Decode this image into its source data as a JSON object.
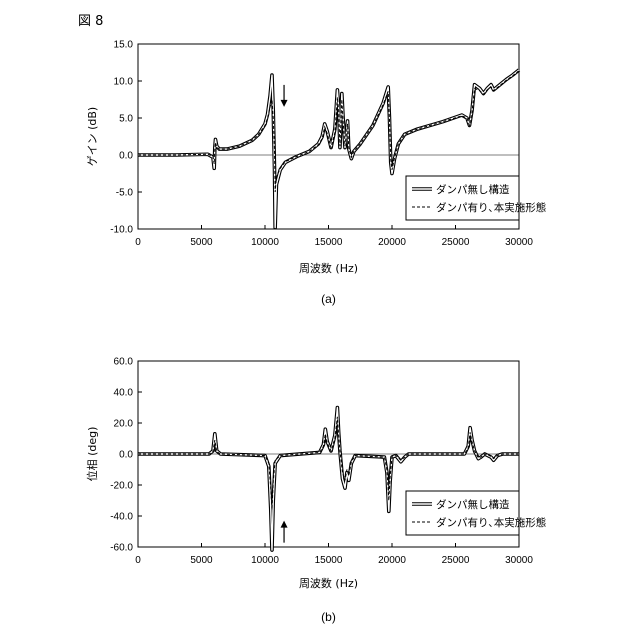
{
  "figure_label": "図 8",
  "chart_data": [
    {
      "type": "line",
      "caption": "(a)",
      "xlabel": "周波数 (Hz)",
      "ylabel": "ゲイン (dB)",
      "xlim": [
        0,
        30000
      ],
      "ylim": [
        -10,
        15
      ],
      "xticks": [
        0,
        5000,
        10000,
        15000,
        20000,
        25000,
        30000
      ],
      "xtick_labels": [
        "0",
        "5000",
        "10000",
        "15000",
        "20000",
        "25000",
        "30000"
      ],
      "yticks": [
        -10,
        -5,
        0,
        5,
        10,
        15
      ],
      "ytick_labels": [
        "-10.0",
        "-5.0",
        "0.0",
        "5.0",
        "10.0",
        "15.0"
      ],
      "grid": false,
      "legend_position": "lower-right",
      "arrow": {
        "x": 11500,
        "y": 6.5,
        "direction": "down"
      },
      "series": [
        {
          "name": "ダンパ無し構造",
          "style": "double",
          "x": [
            0,
            3000,
            5500,
            5900,
            6000,
            6050,
            6100,
            6200,
            6400,
            7000,
            8000,
            9000,
            9500,
            10000,
            10200,
            10400,
            10550,
            10650,
            10750,
            10800,
            10900,
            11200,
            11600,
            12500,
            13500,
            14200,
            14500,
            14700,
            14900,
            15200,
            15500,
            15700,
            15800,
            15900,
            16050,
            16150,
            16300,
            16500,
            16600,
            16800,
            17000,
            17500,
            18500,
            19300,
            19700,
            19800,
            19900,
            20000,
            20200,
            20500,
            21000,
            22000,
            24000,
            25500,
            25900,
            26100,
            26300,
            26500,
            26900,
            27200,
            27500,
            27800,
            28000,
            28500,
            29000,
            29500,
            30000
          ],
          "y": [
            0,
            0,
            0.1,
            -0.3,
            -1.8,
            1.0,
            2.1,
            1.2,
            0.8,
            0.8,
            1.2,
            2.0,
            2.8,
            4.2,
            5.5,
            8.0,
            10.8,
            6.0,
            -2.0,
            -9.8,
            -4.0,
            -2.0,
            -1.0,
            -0.2,
            0.5,
            1.5,
            2.5,
            4.2,
            3.2,
            1.0,
            3.5,
            8.8,
            6.5,
            1.0,
            8.3,
            5.0,
            1.0,
            4.6,
            0.8,
            -0.5,
            0.5,
            1.5,
            4.0,
            7.0,
            9.2,
            5.0,
            -1.0,
            -2.5,
            -0.5,
            1.5,
            2.8,
            3.5,
            4.5,
            5.4,
            5.0,
            4.0,
            6.0,
            9.5,
            9.0,
            8.3,
            9.0,
            9.5,
            8.8,
            9.5,
            10.2,
            10.8,
            11.5
          ]
        },
        {
          "name": "ダンパ有り､本実施形態",
          "style": "dashed",
          "x": [
            0,
            3000,
            5500,
            5900,
            6000,
            6050,
            6100,
            6200,
            6400,
            7000,
            8000,
            9000,
            9500,
            10000,
            10200,
            10400,
            10550,
            10650,
            10750,
            10800,
            10900,
            11200,
            11600,
            12500,
            13500,
            14200,
            14500,
            14700,
            14900,
            15200,
            15500,
            15700,
            15800,
            15900,
            16050,
            16150,
            16300,
            16500,
            16600,
            16800,
            17000,
            17500,
            18500,
            19300,
            19700,
            19800,
            19900,
            20000,
            20200,
            20500,
            21000,
            22000,
            24000,
            25500,
            25900,
            26100,
            26300,
            26500,
            26900,
            27200,
            27500,
            27800,
            28000,
            28500,
            29000,
            29500,
            30000
          ],
          "y": [
            0,
            0,
            0.1,
            -0.2,
            -1.2,
            0.8,
            1.7,
            1.1,
            0.8,
            0.8,
            1.2,
            2.0,
            2.8,
            4.0,
            5.0,
            6.5,
            7.5,
            5.0,
            0.5,
            -5.0,
            -3.0,
            -1.8,
            -0.9,
            -0.2,
            0.5,
            1.4,
            2.2,
            3.8,
            2.9,
            1.0,
            3.0,
            7.8,
            6.0,
            1.2,
            7.5,
            4.6,
            1.2,
            4.2,
            0.9,
            -0.3,
            0.5,
            1.5,
            4.0,
            6.8,
            8.6,
            4.8,
            -0.6,
            -2.0,
            -0.4,
            1.5,
            2.8,
            3.5,
            4.5,
            5.3,
            5.0,
            4.0,
            5.8,
            9.0,
            8.7,
            8.2,
            8.8,
            9.2,
            8.7,
            9.4,
            10.1,
            10.7,
            11.4
          ]
        }
      ]
    },
    {
      "type": "line",
      "caption": "(b)",
      "xlabel": "周波数 (Hz)",
      "ylabel": "位相 (deg)",
      "xlim": [
        0,
        30000
      ],
      "ylim": [
        -60,
        60
      ],
      "xticks": [
        0,
        5000,
        10000,
        15000,
        20000,
        25000,
        30000
      ],
      "xtick_labels": [
        "0",
        "5000",
        "10000",
        "15000",
        "20000",
        "25000",
        "30000"
      ],
      "yticks": [
        -60,
        -40,
        -20,
        0,
        20,
        40,
        60
      ],
      "ytick_labels": [
        "-60.0",
        "-40.0",
        "-20.0",
        "0.0",
        "20.0",
        "40.0",
        "60.0"
      ],
      "grid": false,
      "legend_position": "lower-right",
      "arrow": {
        "x": 11500,
        "y": -43,
        "direction": "up"
      },
      "series": [
        {
          "name": "ダンパ無し構造",
          "style": "double",
          "x": [
            0,
            5600,
            5900,
            6050,
            6200,
            6500,
            10000,
            10300,
            10450,
            10550,
            10650,
            10800,
            11200,
            14300,
            14600,
            14750,
            14900,
            15200,
            15500,
            15700,
            15800,
            15900,
            16100,
            16300,
            16450,
            16600,
            16800,
            17100,
            19400,
            19600,
            19750,
            19850,
            20000,
            20300,
            20700,
            21000,
            21300,
            25700,
            26000,
            26150,
            26300,
            26500,
            26800,
            27000,
            27300,
            27800,
            28000,
            28300,
            28700,
            30000
          ],
          "y": [
            0,
            0,
            2,
            13,
            2,
            0,
            -1,
            -8,
            -35,
            -62,
            -30,
            -6,
            -1,
            1,
            6,
            16,
            8,
            2,
            12,
            30,
            14,
            2,
            -16,
            -22,
            -12,
            -17,
            -6,
            -1,
            -2,
            -12,
            -37,
            -18,
            -2,
            -1,
            -5,
            -2,
            0,
            0,
            5,
            17,
            9,
            2,
            -3,
            -2,
            0,
            -2,
            -4,
            -1,
            0,
            0
          ]
        },
        {
          "name": "ダンパ有り､本実施形態",
          "style": "dashed",
          "x": [
            0,
            5600,
            5900,
            6050,
            6200,
            6500,
            10000,
            10300,
            10450,
            10550,
            10650,
            10800,
            11200,
            14300,
            14600,
            14750,
            14900,
            15200,
            15500,
            15700,
            15800,
            15900,
            16100,
            16300,
            16450,
            16600,
            16800,
            17100,
            19400,
            19600,
            19750,
            19850,
            20000,
            20300,
            20700,
            21000,
            21300,
            25700,
            26000,
            26150,
            26300,
            26500,
            26800,
            27000,
            27300,
            27800,
            28000,
            28300,
            28700,
            30000
          ],
          "y": [
            0,
            0,
            1.5,
            9,
            1.5,
            0,
            -1,
            -6,
            -22,
            -36,
            -18,
            -4,
            -1,
            1,
            5,
            13,
            7,
            2,
            10,
            24,
            12,
            2,
            -12,
            -17,
            -10,
            -14,
            -5,
            -1,
            -2,
            -10,
            -30,
            -15,
            -2,
            -1,
            -4,
            -2,
            0,
            0,
            4,
            14,
            8,
            2,
            -2.5,
            -2,
            0,
            -1.5,
            -3,
            -1,
            0,
            0
          ]
        }
      ]
    }
  ]
}
